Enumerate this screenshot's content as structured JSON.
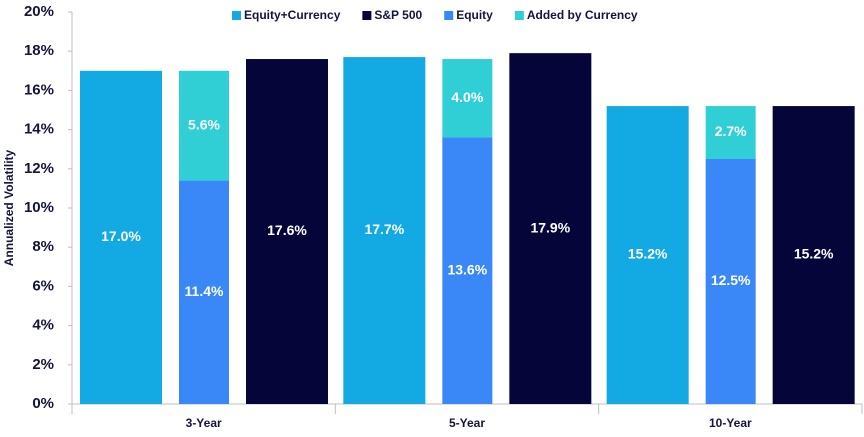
{
  "chart_data": {
    "type": "bar",
    "y_label": "Annualized Volatility",
    "categories": [
      "3-Year",
      "5-Year",
      "10-Year"
    ],
    "series": [
      {
        "name": "Equity+Currency",
        "color": "#13a9e3",
        "values": [
          17.0,
          17.7,
          15.2
        ],
        "value_labels": [
          "17.0%",
          "17.7%",
          "15.2%"
        ]
      },
      {
        "name": "S&P 500",
        "color": "#05053a",
        "values": [
          17.6,
          17.9,
          15.2
        ],
        "value_labels": [
          "17.6%",
          "17.9%",
          "15.2%"
        ]
      },
      {
        "name": "Equity",
        "color": "#3a88f7",
        "stack": "equity",
        "values": [
          11.4,
          13.6,
          12.5
        ],
        "value_labels": [
          "11.4%",
          "13.6%",
          "12.5%"
        ]
      },
      {
        "name": "Added by Currency",
        "color": "#30cfd6",
        "stack": "equity",
        "values": [
          5.6,
          4.0,
          2.7
        ],
        "value_labels": [
          "5.6%",
          "4.0%",
          "2.7%"
        ]
      }
    ],
    "ylim": [
      0,
      20
    ],
    "yticks": [
      {
        "value": 0,
        "label": "0%"
      },
      {
        "value": 2,
        "label": "2%"
      },
      {
        "value": 4,
        "label": "4%"
      },
      {
        "value": 6,
        "label": "6%"
      },
      {
        "value": 8,
        "label": "8%"
      },
      {
        "value": 10,
        "label": "10%"
      },
      {
        "value": 12,
        "label": "12%"
      },
      {
        "value": 14,
        "label": "14%"
      },
      {
        "value": 16,
        "label": "16%"
      },
      {
        "value": 18,
        "label": "18%"
      },
      {
        "value": 20,
        "label": "20%"
      }
    ],
    "grid": false,
    "legend": "top"
  }
}
